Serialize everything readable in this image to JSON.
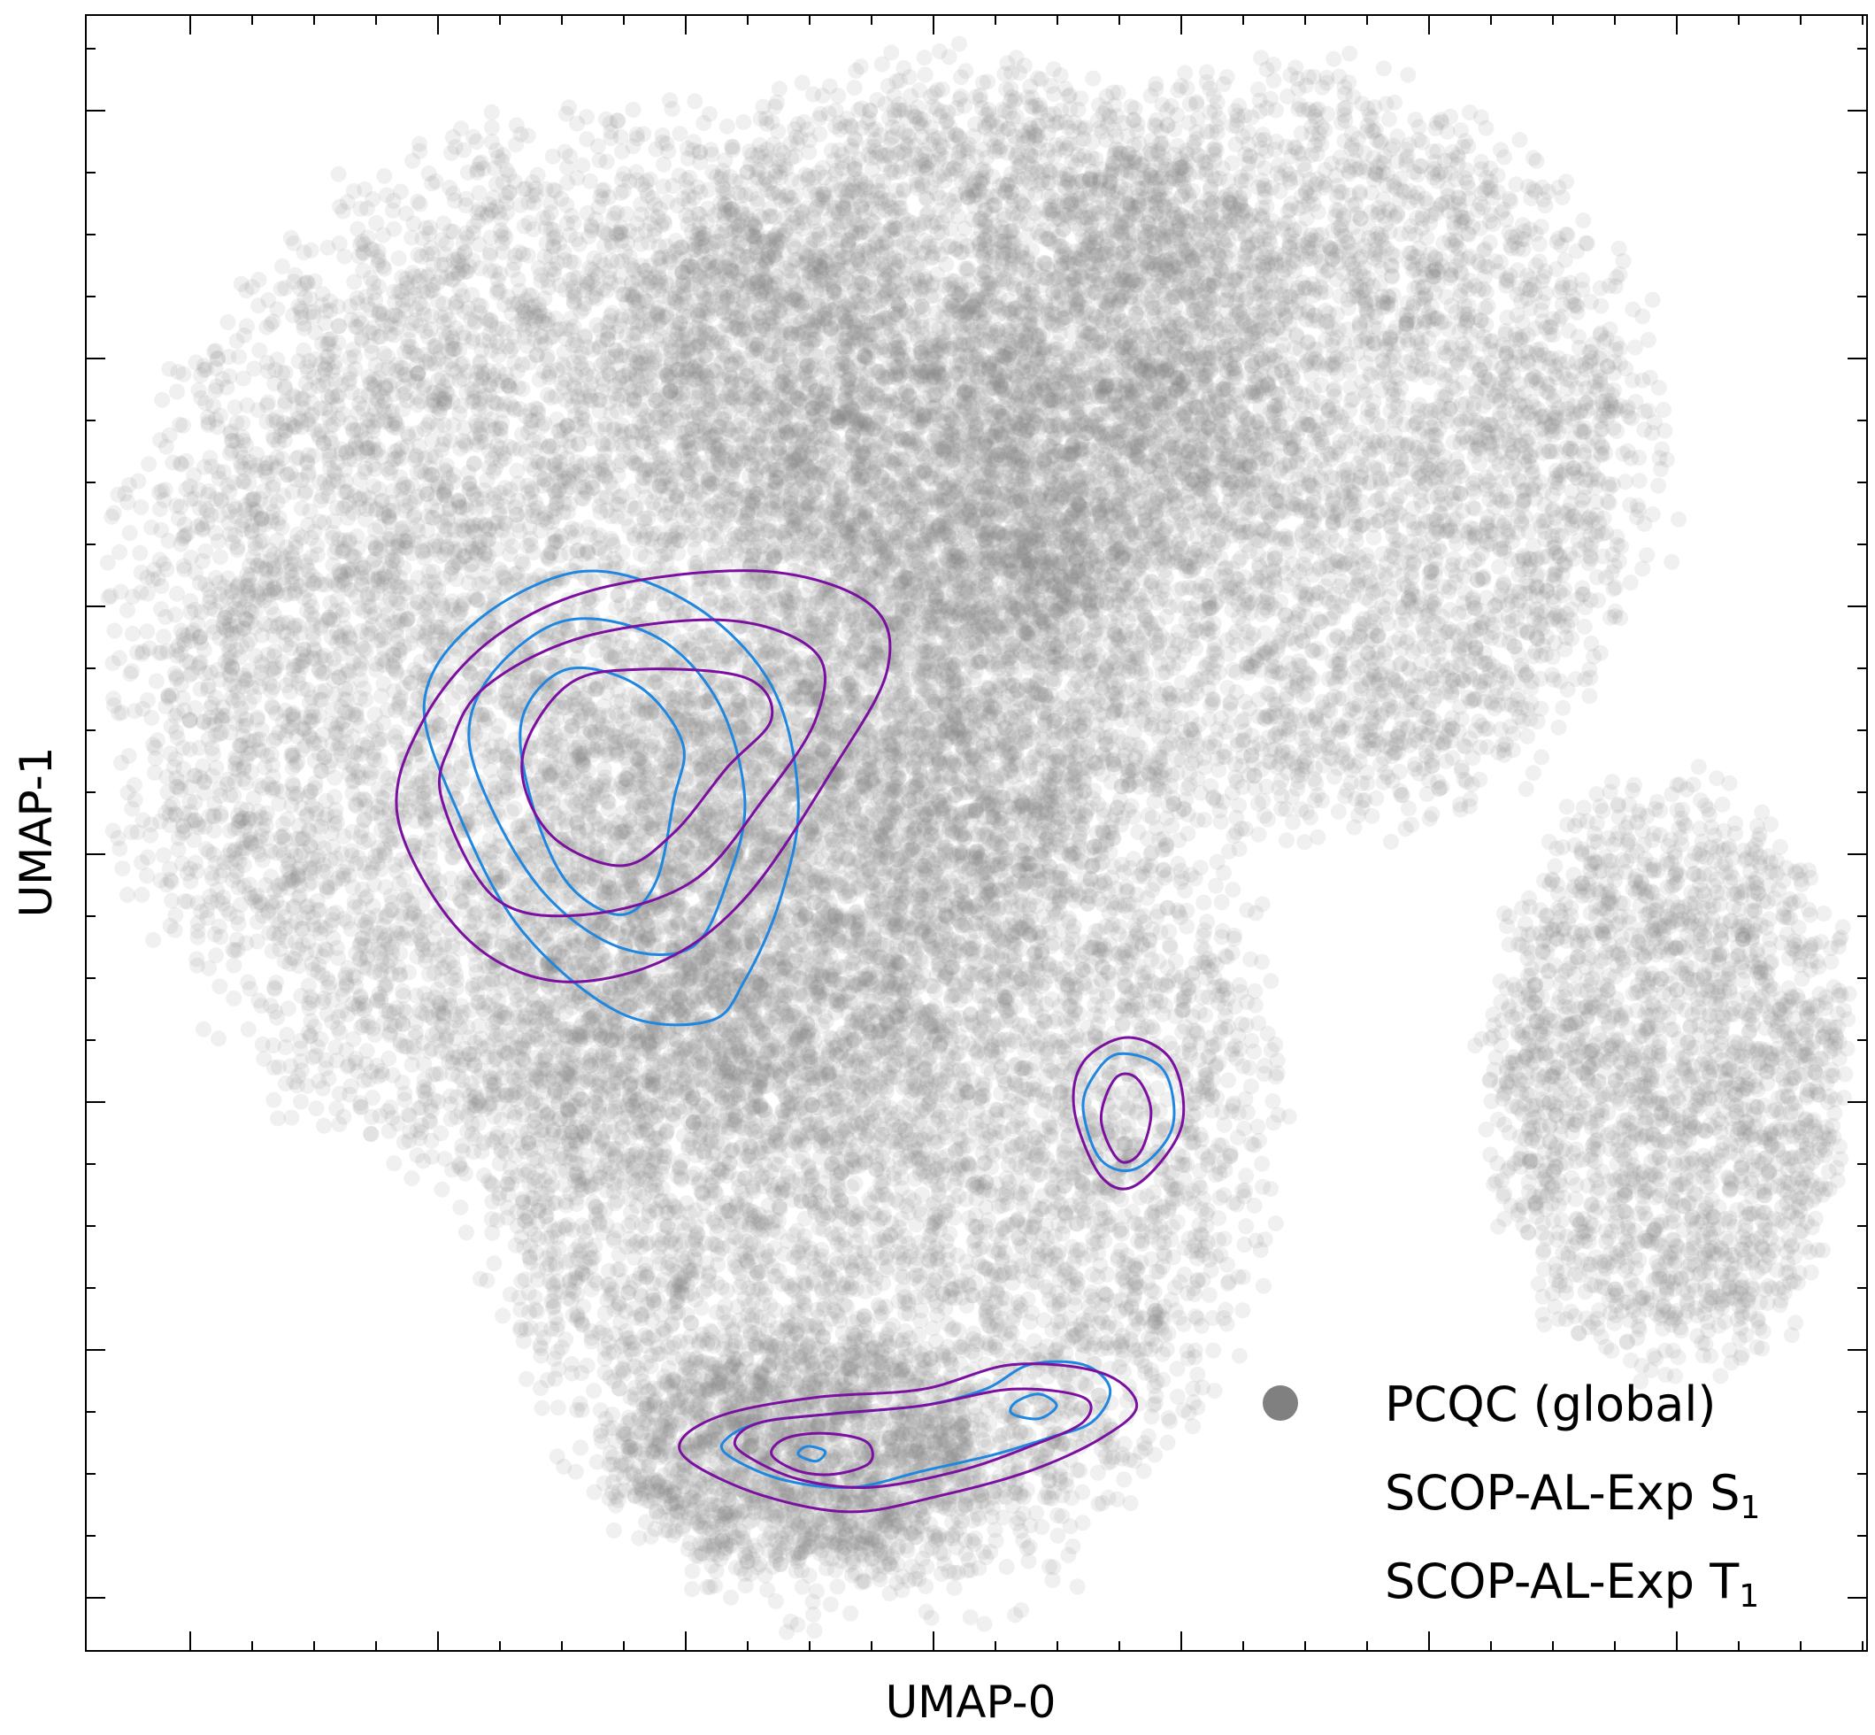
{
  "chart_data": {
    "type": "scatter",
    "title": "",
    "xlabel": "UMAP-0",
    "ylabel": "UMAP-1",
    "tick_labels_shown": false,
    "grid": false,
    "legend_placement": "bottom-right",
    "background_scatter": {
      "name": "PCQC (global)",
      "color": "#808080",
      "note_opacity": 0.12,
      "regions": [
        {
          "name": "left-lobe",
          "cx": 0.3,
          "cy": 0.6,
          "rx": 0.27,
          "ry": 0.31
        },
        {
          "name": "upper-middle",
          "cx": 0.49,
          "cy": 0.79,
          "rx": 0.18,
          "ry": 0.17
        },
        {
          "name": "upper-right-lobe",
          "cx": 0.68,
          "cy": 0.73,
          "rx": 0.19,
          "ry": 0.22
        },
        {
          "name": "lower-middle",
          "cx": 0.44,
          "cy": 0.33,
          "rx": 0.21,
          "ry": 0.29
        },
        {
          "name": "right-lobe",
          "cx": 0.89,
          "cy": 0.35,
          "rx": 0.1,
          "ry": 0.17
        },
        {
          "name": "bottom-tail",
          "cx": 0.4,
          "cy": 0.12,
          "rx": 0.1,
          "ry": 0.07
        }
      ]
    },
    "series": [
      {
        "name": "SCOP-AL-Exp S",
        "name_subscript": "1",
        "color": "#1f87e0",
        "contours": [
          [
            [
              0.21,
              0.51
            ],
            [
              0.245,
              0.44
            ],
            [
              0.3,
              0.39
            ],
            [
              0.35,
              0.385
            ],
            [
              0.37,
              0.41
            ],
            [
              0.39,
              0.46
            ],
            [
              0.4,
              0.52
            ],
            [
              0.385,
              0.59
            ],
            [
              0.34,
              0.64
            ],
            [
              0.28,
              0.66
            ],
            [
              0.22,
              0.63
            ],
            [
              0.19,
              0.58
            ]
          ],
          [
            [
              0.23,
              0.51
            ],
            [
              0.26,
              0.46
            ],
            [
              0.3,
              0.43
            ],
            [
              0.34,
              0.43
            ],
            [
              0.36,
              0.47
            ],
            [
              0.37,
              0.52
            ],
            [
              0.355,
              0.58
            ],
            [
              0.32,
              0.62
            ],
            [
              0.27,
              0.63
            ],
            [
              0.23,
              0.6
            ],
            [
              0.215,
              0.56
            ]
          ],
          [
            [
              0.25,
              0.52
            ],
            [
              0.27,
              0.47
            ],
            [
              0.3,
              0.45
            ],
            [
              0.32,
              0.47
            ],
            [
              0.33,
              0.52
            ],
            [
              0.335,
              0.555
            ],
            [
              0.31,
              0.59
            ],
            [
              0.27,
              0.6
            ],
            [
              0.245,
              0.57
            ]
          ],
          [
            [
              0.56,
              0.33
            ],
            [
              0.57,
              0.3
            ],
            [
              0.59,
              0.295
            ],
            [
              0.61,
              0.32
            ],
            [
              0.605,
              0.355
            ],
            [
              0.58,
              0.365
            ],
            [
              0.565,
              0.35
            ]
          ],
          [
            [
              0.36,
              0.12
            ],
            [
              0.39,
              0.105
            ],
            [
              0.43,
              0.1
            ],
            [
              0.47,
              0.11
            ],
            [
              0.51,
              0.12
            ],
            [
              0.54,
              0.13
            ],
            [
              0.565,
              0.14
            ],
            [
              0.575,
              0.16
            ],
            [
              0.56,
              0.175
            ],
            [
              0.53,
              0.175
            ],
            [
              0.505,
              0.16
            ],
            [
              0.47,
              0.15
            ],
            [
              0.42,
              0.145
            ],
            [
              0.38,
              0.14
            ],
            [
              0.36,
              0.13
            ]
          ],
          [
            [
              0.4,
              0.12
            ],
            [
              0.41,
              0.116
            ],
            [
              0.415,
              0.122
            ],
            [
              0.405,
              0.125
            ]
          ],
          [
            [
              0.52,
              0.145
            ],
            [
              0.535,
              0.142
            ],
            [
              0.545,
              0.15
            ],
            [
              0.535,
              0.157
            ],
            [
              0.522,
              0.152
            ]
          ]
        ]
      },
      {
        "name": "SCOP-AL-Exp T",
        "name_subscript": "1",
        "color": "#7b0fa0",
        "contours": [
          [
            [
              0.175,
              0.51
            ],
            [
              0.21,
              0.44
            ],
            [
              0.26,
              0.41
            ],
            [
              0.32,
              0.42
            ],
            [
              0.37,
              0.46
            ],
            [
              0.42,
              0.54
            ],
            [
              0.45,
              0.6
            ],
            [
              0.44,
              0.64
            ],
            [
              0.38,
              0.66
            ],
            [
              0.29,
              0.65
            ],
            [
              0.23,
              0.62
            ],
            [
              0.19,
              0.57
            ]
          ],
          [
            [
              0.2,
              0.52
            ],
            [
              0.23,
              0.46
            ],
            [
              0.28,
              0.45
            ],
            [
              0.34,
              0.47
            ],
            [
              0.38,
              0.52
            ],
            [
              0.41,
              0.57
            ],
            [
              0.41,
              0.61
            ],
            [
              0.36,
              0.63
            ],
            [
              0.28,
              0.62
            ],
            [
              0.225,
              0.59
            ],
            [
              0.205,
              0.555
            ]
          ],
          [
            [
              0.245,
              0.545
            ],
            [
              0.26,
              0.5
            ],
            [
              0.3,
              0.48
            ],
            [
              0.33,
              0.5
            ],
            [
              0.36,
              0.54
            ],
            [
              0.385,
              0.57
            ],
            [
              0.37,
              0.595
            ],
            [
              0.31,
              0.6
            ],
            [
              0.27,
              0.59
            ]
          ],
          [
            [
              0.555,
              0.33
            ],
            [
              0.57,
              0.29
            ],
            [
              0.59,
              0.285
            ],
            [
              0.615,
              0.32
            ],
            [
              0.61,
              0.36
            ],
            [
              0.585,
              0.375
            ],
            [
              0.56,
              0.36
            ]
          ],
          [
            [
              0.57,
              0.325
            ],
            [
              0.58,
              0.3
            ],
            [
              0.592,
              0.305
            ],
            [
              0.598,
              0.33
            ],
            [
              0.59,
              0.35
            ],
            [
              0.578,
              0.35
            ]
          ],
          [
            [
              0.34,
              0.115
            ],
            [
              0.38,
              0.095
            ],
            [
              0.43,
              0.085
            ],
            [
              0.48,
              0.095
            ],
            [
              0.53,
              0.11
            ],
            [
              0.57,
              0.13
            ],
            [
              0.59,
              0.15
            ],
            [
              0.57,
              0.17
            ],
            [
              0.52,
              0.175
            ],
            [
              0.47,
              0.16
            ],
            [
              0.41,
              0.155
            ],
            [
              0.36,
              0.145
            ],
            [
              0.335,
              0.13
            ]
          ],
          [
            [
              0.37,
              0.12
            ],
            [
              0.4,
              0.105
            ],
            [
              0.44,
              0.1
            ],
            [
              0.49,
              0.11
            ],
            [
              0.53,
              0.125
            ],
            [
              0.56,
              0.14
            ],
            [
              0.56,
              0.155
            ],
            [
              0.52,
              0.16
            ],
            [
              0.47,
              0.15
            ],
            [
              0.42,
              0.145
            ],
            [
              0.38,
              0.14
            ],
            [
              0.365,
              0.13
            ]
          ],
          [
            [
              0.385,
              0.12
            ],
            [
              0.4,
              0.11
            ],
            [
              0.42,
              0.108
            ],
            [
              0.44,
              0.115
            ],
            [
              0.438,
              0.128
            ],
            [
              0.415,
              0.133
            ],
            [
              0.393,
              0.13
            ]
          ]
        ]
      }
    ],
    "legend": [
      {
        "label": "PCQC (global)",
        "subscript": "",
        "marker": "circle",
        "color": "#808080"
      },
      {
        "label": "SCOP-AL-Exp S",
        "subscript": "1",
        "marker": "none",
        "color": "#1f87e0"
      },
      {
        "label": "SCOP-AL-Exp T",
        "subscript": "1",
        "marker": "none",
        "color": "#7b0fa0"
      }
    ]
  }
}
